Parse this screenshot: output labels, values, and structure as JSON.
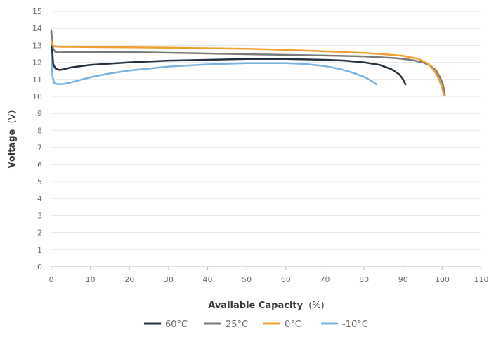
{
  "chart_data": {
    "type": "line",
    "title": "",
    "xlabel": "Available Capacity",
    "xlabel_unit": "(%)",
    "ylabel": "Voltage",
    "ylabel_unit": "(V)",
    "xlim": [
      0,
      110
    ],
    "ylim": [
      0,
      15
    ],
    "x_ticks": [
      "0",
      "10",
      "20",
      "30",
      "40",
      "50",
      "60",
      "70",
      "80",
      "90",
      "100",
      "110"
    ],
    "y_ticks": [
      "0",
      "1",
      "2",
      "3",
      "4",
      "5",
      "6",
      "7",
      "8",
      "9",
      "10",
      "11",
      "12",
      "13",
      "14",
      "15"
    ],
    "grid": "horizontal",
    "legend_position": "bottom",
    "series": [
      {
        "name": "60°C",
        "color": "#263240",
        "points": [
          [
            0,
            13.8
          ],
          [
            0.2,
            12.8
          ],
          [
            0.5,
            11.9
          ],
          [
            1,
            11.65
          ],
          [
            2,
            11.55
          ],
          [
            3,
            11.58
          ],
          [
            5,
            11.7
          ],
          [
            10,
            11.85
          ],
          [
            20,
            12.0
          ],
          [
            30,
            12.1
          ],
          [
            40,
            12.15
          ],
          [
            50,
            12.2
          ],
          [
            60,
            12.2
          ],
          [
            70,
            12.15
          ],
          [
            75,
            12.1
          ],
          [
            80,
            12.0
          ],
          [
            84,
            11.85
          ],
          [
            87,
            11.6
          ],
          [
            89,
            11.3
          ],
          [
            90,
            11.0
          ],
          [
            90.6,
            10.7
          ]
        ]
      },
      {
        "name": "25°C",
        "color": "#7a7a7a",
        "points": [
          [
            0,
            13.9
          ],
          [
            0.2,
            13.3
          ],
          [
            0.5,
            12.8
          ],
          [
            1,
            12.62
          ],
          [
            2,
            12.58
          ],
          [
            5,
            12.6
          ],
          [
            15,
            12.62
          ],
          [
            25,
            12.58
          ],
          [
            40,
            12.52
          ],
          [
            55,
            12.46
          ],
          [
            70,
            12.4
          ],
          [
            80,
            12.35
          ],
          [
            88,
            12.25
          ],
          [
            92,
            12.15
          ],
          [
            95,
            12.0
          ],
          [
            97,
            11.8
          ],
          [
            98.5,
            11.5
          ],
          [
            99.5,
            11.1
          ],
          [
            100.2,
            10.7
          ],
          [
            100.7,
            10.1
          ]
        ]
      },
      {
        "name": "0°C",
        "color": "#f0a030",
        "points": [
          [
            0,
            13.3
          ],
          [
            0.2,
            13.05
          ],
          [
            0.5,
            12.95
          ],
          [
            2,
            12.92
          ],
          [
            10,
            12.9
          ],
          [
            20,
            12.88
          ],
          [
            30,
            12.86
          ],
          [
            40,
            12.83
          ],
          [
            50,
            12.8
          ],
          [
            60,
            12.73
          ],
          [
            70,
            12.65
          ],
          [
            80,
            12.55
          ],
          [
            85,
            12.48
          ],
          [
            90,
            12.38
          ],
          [
            94,
            12.2
          ],
          [
            96.5,
            11.9
          ],
          [
            98,
            11.5
          ],
          [
            99.2,
            11.0
          ],
          [
            100,
            10.5
          ],
          [
            100.4,
            10.1
          ]
        ]
      },
      {
        "name": "-10°C",
        "color": "#7ab3e0",
        "points": [
          [
            0,
            12.8
          ],
          [
            0.1,
            12.0
          ],
          [
            0.3,
            11.2
          ],
          [
            0.7,
            10.8
          ],
          [
            1.5,
            10.72
          ],
          [
            3,
            10.72
          ],
          [
            5,
            10.82
          ],
          [
            10,
            11.12
          ],
          [
            15,
            11.35
          ],
          [
            20,
            11.52
          ],
          [
            30,
            11.75
          ],
          [
            40,
            11.88
          ],
          [
            50,
            11.95
          ],
          [
            60,
            11.95
          ],
          [
            65,
            11.9
          ],
          [
            70,
            11.78
          ],
          [
            74,
            11.6
          ],
          [
            77,
            11.4
          ],
          [
            80,
            11.15
          ],
          [
            82,
            10.9
          ],
          [
            83.2,
            10.7
          ]
        ]
      }
    ]
  }
}
